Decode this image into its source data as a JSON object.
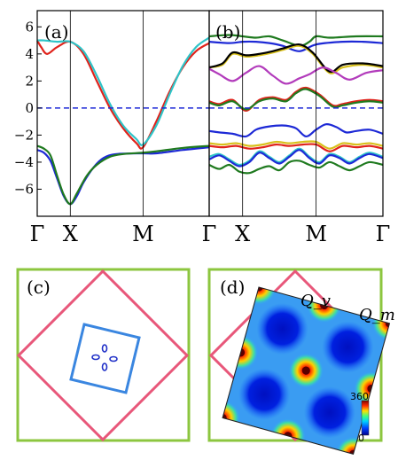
{
  "panels": {
    "a": {
      "label": "(a)"
    },
    "b": {
      "label": "(b)"
    },
    "c": {
      "label": "(c)"
    },
    "d": {
      "label": "(d)",
      "q_labels": [
        "Q_v",
        "Q_m"
      ]
    }
  },
  "colorbar": {
    "max_label": "360",
    "min_label": "0"
  },
  "colors": {
    "red": "#e0221b",
    "cyan": "#2ec4c8",
    "blue": "#1d29d6",
    "green": "#1f7a1f",
    "black": "#000000",
    "yellow": "#d8c01a",
    "magenta": "#b23bbb",
    "zero_line": "#1d29d6",
    "bz_outer": "#8cc63f",
    "bz_diamond": "#e8577a",
    "bz_inner": "#3a86e0",
    "dots": "#2030c8"
  },
  "chart_data": [
    {
      "type": "line",
      "panel": "a",
      "x_ticks": [
        "Γ",
        "X",
        "M",
        "Γ"
      ],
      "y_ticks": [
        "6",
        "4",
        "2",
        "0",
        "−2",
        "−4",
        "−6"
      ],
      "ylim": [
        -8,
        7.2
      ],
      "zero_line": 0,
      "series": [
        {
          "color": "red",
          "values": [
            [
              0,
              5.0
            ],
            [
              0.06,
              4.5
            ],
            [
              0.15,
              4.0
            ],
            [
              0.3,
              4.5
            ],
            [
              0.5,
              4.9
            ],
            [
              0.7,
              4.0
            ],
            [
              0.9,
              2.0
            ],
            [
              1.1,
              0.0
            ],
            [
              1.3,
              -1.5
            ],
            [
              1.5,
              -2.6
            ],
            [
              1.6,
              -2.9
            ],
            [
              1.8,
              -1.0
            ],
            [
              2.0,
              1.2
            ],
            [
              2.2,
              3.0
            ],
            [
              2.4,
              4.2
            ],
            [
              2.6,
              4.8
            ]
          ]
        },
        {
          "color": "cyan",
          "values": [
            [
              0,
              5.0
            ],
            [
              0.1,
              5.0
            ],
            [
              0.3,
              4.9
            ],
            [
              0.5,
              4.9
            ],
            [
              0.7,
              4.2
            ],
            [
              0.9,
              2.4
            ],
            [
              1.1,
              0.3
            ],
            [
              1.3,
              -1.3
            ],
            [
              1.5,
              -2.3
            ],
            [
              1.6,
              -2.7
            ],
            [
              1.8,
              -1.3
            ],
            [
              2.0,
              1.0
            ],
            [
              2.2,
              3.1
            ],
            [
              2.4,
              4.5
            ],
            [
              2.6,
              5.2
            ]
          ]
        },
        {
          "color": "blue",
          "values": [
            [
              0,
              -3.1
            ],
            [
              0.1,
              -3.3
            ],
            [
              0.2,
              -3.9
            ],
            [
              0.3,
              -5.2
            ],
            [
              0.4,
              -6.5
            ],
            [
              0.5,
              -7.1
            ],
            [
              0.6,
              -6.5
            ],
            [
              0.7,
              -5.5
            ],
            [
              0.85,
              -4.4
            ],
            [
              1.0,
              -3.7
            ],
            [
              1.2,
              -3.4
            ],
            [
              1.6,
              -3.35
            ],
            [
              1.8,
              -3.35
            ],
            [
              2.2,
              -3.1
            ],
            [
              2.6,
              -2.9
            ]
          ]
        },
        {
          "color": "green",
          "values": [
            [
              0,
              -2.8
            ],
            [
              0.1,
              -3.0
            ],
            [
              0.2,
              -3.5
            ],
            [
              0.3,
              -5.0
            ],
            [
              0.4,
              -6.4
            ],
            [
              0.5,
              -7.1
            ],
            [
              0.6,
              -6.3
            ],
            [
              0.75,
              -5.0
            ],
            [
              0.9,
              -4.2
            ],
            [
              1.1,
              -3.6
            ],
            [
              1.3,
              -3.4
            ],
            [
              1.6,
              -3.3
            ],
            [
              1.8,
              -3.2
            ],
            [
              2.2,
              -2.95
            ],
            [
              2.6,
              -2.8
            ]
          ]
        }
      ]
    },
    {
      "type": "line",
      "panel": "b",
      "x_ticks": [
        "Γ",
        "X",
        "M",
        "Γ"
      ],
      "ylim": [
        -8,
        7.2
      ],
      "zero_line": 0,
      "series": [
        {
          "color": "green",
          "values": [
            [
              0,
              5.3
            ],
            [
              0.3,
              5.4
            ],
            [
              0.5,
              5.3
            ],
            [
              0.7,
              5.2
            ],
            [
              0.9,
              5.3
            ],
            [
              1.1,
              5.0
            ],
            [
              1.35,
              4.6
            ],
            [
              1.5,
              4.9
            ],
            [
              1.6,
              5.3
            ],
            [
              1.8,
              5.2
            ],
            [
              2.2,
              5.3
            ],
            [
              2.6,
              5.3
            ]
          ]
        },
        {
          "color": "blue",
          "values": [
            [
              0,
              4.9
            ],
            [
              0.3,
              4.8
            ],
            [
              0.5,
              4.9
            ],
            [
              0.7,
              4.9
            ],
            [
              0.9,
              4.8
            ],
            [
              1.1,
              4.6
            ],
            [
              1.35,
              4.2
            ],
            [
              1.6,
              4.7
            ],
            [
              2.0,
              4.9
            ],
            [
              2.3,
              4.9
            ],
            [
              2.6,
              4.8
            ]
          ]
        },
        {
          "color": "yellow",
          "values": [
            [
              0,
              3.0
            ],
            [
              0.2,
              3.2
            ],
            [
              0.35,
              4.0
            ],
            [
              0.55,
              3.8
            ],
            [
              0.75,
              3.9
            ],
            [
              0.95,
              4.1
            ],
            [
              1.1,
              4.3
            ],
            [
              1.35,
              4.6
            ],
            [
              1.55,
              4.0
            ],
            [
              1.8,
              2.6
            ],
            [
              2.0,
              3.0
            ],
            [
              2.3,
              3.2
            ],
            [
              2.6,
              3.0
            ]
          ]
        },
        {
          "color": "black",
          "values": [
            [
              0,
              3.0
            ],
            [
              0.2,
              3.3
            ],
            [
              0.35,
              4.1
            ],
            [
              0.55,
              3.9
            ],
            [
              0.75,
              4.0
            ],
            [
              0.95,
              4.2
            ],
            [
              1.1,
              4.4
            ],
            [
              1.35,
              4.7
            ],
            [
              1.55,
              4.1
            ],
            [
              1.8,
              2.7
            ],
            [
              2.0,
              3.2
            ],
            [
              2.3,
              3.3
            ],
            [
              2.6,
              3.1
            ]
          ]
        },
        {
          "color": "magenta",
          "values": [
            [
              0,
              2.9
            ],
            [
              0.15,
              2.5
            ],
            [
              0.35,
              2.0
            ],
            [
              0.55,
              2.6
            ],
            [
              0.75,
              3.1
            ],
            [
              0.95,
              2.4
            ],
            [
              1.15,
              1.8
            ],
            [
              1.35,
              2.2
            ],
            [
              1.5,
              2.5
            ],
            [
              1.7,
              3.0
            ],
            [
              1.9,
              2.6
            ],
            [
              2.1,
              2.1
            ],
            [
              2.35,
              2.6
            ],
            [
              2.6,
              2.8
            ]
          ]
        },
        {
          "color": "red",
          "values": [
            [
              0,
              0.5
            ],
            [
              0.15,
              0.3
            ],
            [
              0.35,
              0.6
            ],
            [
              0.55,
              -0.2
            ],
            [
              0.75,
              0.6
            ],
            [
              0.95,
              0.8
            ],
            [
              1.15,
              0.6
            ],
            [
              1.3,
              1.2
            ],
            [
              1.45,
              1.5
            ],
            [
              1.65,
              1.0
            ],
            [
              1.85,
              0.2
            ],
            [
              2.0,
              0.3
            ],
            [
              2.2,
              0.5
            ],
            [
              2.4,
              0.6
            ],
            [
              2.6,
              0.5
            ]
          ]
        },
        {
          "color": "green",
          "values": [
            [
              0,
              0.4
            ],
            [
              0.15,
              0.2
            ],
            [
              0.35,
              0.5
            ],
            [
              0.55,
              -0.1
            ],
            [
              0.75,
              0.5
            ],
            [
              0.95,
              0.7
            ],
            [
              1.15,
              0.5
            ],
            [
              1.3,
              1.1
            ],
            [
              1.45,
              1.4
            ],
            [
              1.65,
              0.9
            ],
            [
              1.85,
              0.1
            ],
            [
              2.0,
              0.2
            ],
            [
              2.2,
              0.4
            ],
            [
              2.4,
              0.5
            ],
            [
              2.6,
              0.4
            ]
          ]
        },
        {
          "color": "blue",
          "values": [
            [
              0,
              -1.7
            ],
            [
              0.15,
              -1.8
            ],
            [
              0.35,
              -1.9
            ],
            [
              0.55,
              -2.1
            ],
            [
              0.7,
              -1.6
            ],
            [
              0.85,
              -1.4
            ],
            [
              1.0,
              -1.3
            ],
            [
              1.15,
              -1.3
            ],
            [
              1.3,
              -1.5
            ],
            [
              1.45,
              -2.1
            ],
            [
              1.6,
              -1.6
            ],
            [
              1.75,
              -1.2
            ],
            [
              1.9,
              -1.4
            ],
            [
              2.05,
              -1.8
            ],
            [
              2.2,
              -1.7
            ],
            [
              2.4,
              -1.6
            ],
            [
              2.6,
              -1.9
            ]
          ]
        },
        {
          "color": "yellow",
          "values": [
            [
              0,
              -2.6
            ],
            [
              0.2,
              -2.7
            ],
            [
              0.4,
              -2.6
            ],
            [
              0.6,
              -2.8
            ],
            [
              0.8,
              -2.7
            ],
            [
              1.0,
              -2.5
            ],
            [
              1.2,
              -2.6
            ],
            [
              1.4,
              -2.5
            ],
            [
              1.6,
              -2.5
            ],
            [
              1.8,
              -3.0
            ],
            [
              2.0,
              -2.6
            ],
            [
              2.2,
              -2.7
            ],
            [
              2.4,
              -2.6
            ],
            [
              2.6,
              -2.8
            ]
          ]
        },
        {
          "color": "red",
          "values": [
            [
              0,
              -2.8
            ],
            [
              0.2,
              -2.9
            ],
            [
              0.4,
              -2.8
            ],
            [
              0.6,
              -3.0
            ],
            [
              0.8,
              -2.9
            ],
            [
              1.0,
              -2.7
            ],
            [
              1.2,
              -2.8
            ],
            [
              1.4,
              -2.7
            ],
            [
              1.6,
              -2.7
            ],
            [
              1.8,
              -3.2
            ],
            [
              2.0,
              -2.8
            ],
            [
              2.2,
              -2.9
            ],
            [
              2.4,
              -2.8
            ],
            [
              2.6,
              -3.0
            ]
          ]
        },
        {
          "color": "cyan",
          "values": [
            [
              0,
              -3.6
            ],
            [
              0.15,
              -3.4
            ],
            [
              0.3,
              -3.8
            ],
            [
              0.45,
              -4.2
            ],
            [
              0.6,
              -3.9
            ],
            [
              0.75,
              -3.2
            ],
            [
              0.9,
              -3.6
            ],
            [
              1.05,
              -4.0
            ],
            [
              1.2,
              -3.5
            ],
            [
              1.35,
              -3.0
            ],
            [
              1.5,
              -3.6
            ],
            [
              1.65,
              -4.0
            ],
            [
              1.8,
              -3.4
            ],
            [
              1.95,
              -3.6
            ],
            [
              2.1,
              -4.0
            ],
            [
              2.25,
              -3.6
            ],
            [
              2.4,
              -3.3
            ],
            [
              2.6,
              -3.6
            ]
          ]
        },
        {
          "color": "blue",
          "values": [
            [
              0,
              -3.8
            ],
            [
              0.15,
              -3.5
            ],
            [
              0.3,
              -3.9
            ],
            [
              0.45,
              -4.3
            ],
            [
              0.6,
              -4.0
            ],
            [
              0.75,
              -3.3
            ],
            [
              0.9,
              -3.7
            ],
            [
              1.05,
              -4.1
            ],
            [
              1.2,
              -3.6
            ],
            [
              1.35,
              -3.1
            ],
            [
              1.5,
              -3.7
            ],
            [
              1.65,
              -4.1
            ],
            [
              1.8,
              -3.5
            ],
            [
              1.95,
              -3.7
            ],
            [
              2.1,
              -4.1
            ],
            [
              2.25,
              -3.7
            ],
            [
              2.4,
              -3.4
            ],
            [
              2.6,
              -3.7
            ]
          ]
        },
        {
          "color": "green",
          "values": [
            [
              0,
              -4.2
            ],
            [
              0.15,
              -4.5
            ],
            [
              0.3,
              -4.2
            ],
            [
              0.45,
              -4.7
            ],
            [
              0.6,
              -4.8
            ],
            [
              0.75,
              -4.5
            ],
            [
              0.9,
              -4.3
            ],
            [
              1.05,
              -4.6
            ],
            [
              1.2,
              -4.0
            ],
            [
              1.35,
              -3.9
            ],
            [
              1.5,
              -4.2
            ],
            [
              1.65,
              -4.4
            ],
            [
              1.8,
              -4.0
            ],
            [
              1.95,
              -4.3
            ],
            [
              2.1,
              -4.6
            ],
            [
              2.25,
              -4.3
            ],
            [
              2.4,
              -4.0
            ],
            [
              2.6,
              -4.2
            ]
          ]
        }
      ]
    }
  ]
}
